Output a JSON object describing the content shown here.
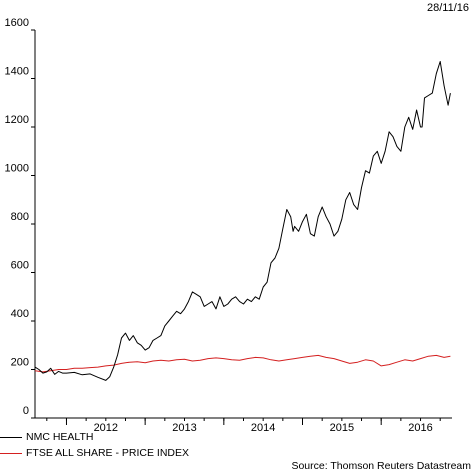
{
  "date_stamp": "28/11/16",
  "source": "Source: Thomson Reuters Datastream",
  "chart_data": {
    "type": "line",
    "title": "",
    "xlabel": "",
    "ylabel": "",
    "x_ticks": [
      "2012",
      "2013",
      "2014",
      "2015",
      "2016"
    ],
    "y_ticks": [
      0,
      200,
      400,
      600,
      800,
      1000,
      1200,
      1400,
      1600
    ],
    "ylim": [
      0,
      1600
    ],
    "xlim": [
      2011.6,
      2016.9
    ],
    "grid": false,
    "legend_position": "bottom-left",
    "series": [
      {
        "name": "NMC HEALTH",
        "color": "#000000",
        "x": [
          2011.6,
          2011.65,
          2011.7,
          2011.75,
          2011.8,
          2011.85,
          2011.9,
          2011.95,
          2012.0,
          2012.1,
          2012.2,
          2012.3,
          2012.4,
          2012.5,
          2012.55,
          2012.6,
          2012.65,
          2012.7,
          2012.75,
          2012.8,
          2012.85,
          2012.9,
          2012.95,
          2013.0,
          2013.05,
          2013.1,
          2013.15,
          2013.2,
          2013.25,
          2013.3,
          2013.35,
          2013.4,
          2013.45,
          2013.5,
          2013.55,
          2013.6,
          2013.65,
          2013.7,
          2013.75,
          2013.8,
          2013.85,
          2013.9,
          2013.95,
          2014.0,
          2014.05,
          2014.1,
          2014.15,
          2014.2,
          2014.25,
          2014.3,
          2014.35,
          2014.4,
          2014.45,
          2014.5,
          2014.55,
          2014.6,
          2014.65,
          2014.7,
          2014.75,
          2014.8,
          2014.85,
          2014.88,
          2014.9,
          2014.95,
          2015.0,
          2015.05,
          2015.1,
          2015.15,
          2015.2,
          2015.25,
          2015.3,
          2015.35,
          2015.4,
          2015.45,
          2015.5,
          2015.55,
          2015.6,
          2015.65,
          2015.7,
          2015.75,
          2015.8,
          2015.85,
          2015.9,
          2015.95,
          2016.0,
          2016.05,
          2016.1,
          2016.15,
          2016.2,
          2016.25,
          2016.3,
          2016.35,
          2016.4,
          2016.45,
          2016.5,
          2016.52,
          2016.55,
          2016.6,
          2016.65,
          2016.7,
          2016.75,
          2016.8,
          2016.85,
          2016.88
        ],
        "values": [
          210,
          200,
          185,
          190,
          205,
          180,
          192,
          185,
          185,
          188,
          178,
          182,
          168,
          155,
          170,
          210,
          260,
          330,
          350,
          320,
          340,
          310,
          300,
          280,
          290,
          320,
          330,
          340,
          380,
          400,
          420,
          440,
          430,
          450,
          480,
          520,
          510,
          500,
          460,
          470,
          480,
          450,
          500,
          460,
          470,
          490,
          500,
          480,
          470,
          490,
          480,
          500,
          490,
          540,
          560,
          640,
          660,
          700,
          780,
          860,
          830,
          770,
          790,
          770,
          810,
          840,
          760,
          750,
          830,
          870,
          830,
          800,
          750,
          770,
          820,
          900,
          930,
          880,
          860,
          950,
          1020,
          1010,
          1080,
          1100,
          1050,
          1100,
          1180,
          1160,
          1120,
          1100,
          1200,
          1240,
          1190,
          1270,
          1200,
          1200,
          1320,
          1330,
          1340,
          1420,
          1470,
          1370,
          1290,
          1340
        ]
      },
      {
        "name": "FTSE ALL SHARE - PRICE INDEX",
        "color": "#d42020",
        "x": [
          2011.6,
          2011.7,
          2011.8,
          2011.9,
          2012.0,
          2012.1,
          2012.2,
          2012.3,
          2012.4,
          2012.5,
          2012.6,
          2012.7,
          2012.8,
          2012.9,
          2013.0,
          2013.1,
          2013.2,
          2013.3,
          2013.4,
          2013.5,
          2013.6,
          2013.7,
          2013.8,
          2013.9,
          2014.0,
          2014.1,
          2014.2,
          2014.3,
          2014.4,
          2014.5,
          2014.6,
          2014.7,
          2014.8,
          2014.9,
          2015.0,
          2015.1,
          2015.2,
          2015.3,
          2015.4,
          2015.5,
          2015.6,
          2015.7,
          2015.8,
          2015.9,
          2016.0,
          2016.1,
          2016.2,
          2016.3,
          2016.4,
          2016.5,
          2016.6,
          2016.7,
          2016.8,
          2016.88
        ],
        "values": [
          195,
          190,
          195,
          200,
          200,
          205,
          205,
          208,
          210,
          215,
          218,
          225,
          230,
          232,
          228,
          235,
          238,
          235,
          240,
          242,
          235,
          238,
          245,
          248,
          245,
          240,
          238,
          245,
          250,
          248,
          240,
          235,
          240,
          245,
          250,
          255,
          258,
          250,
          245,
          235,
          225,
          230,
          240,
          235,
          215,
          220,
          230,
          240,
          235,
          245,
          255,
          258,
          250,
          255
        ]
      }
    ]
  }
}
